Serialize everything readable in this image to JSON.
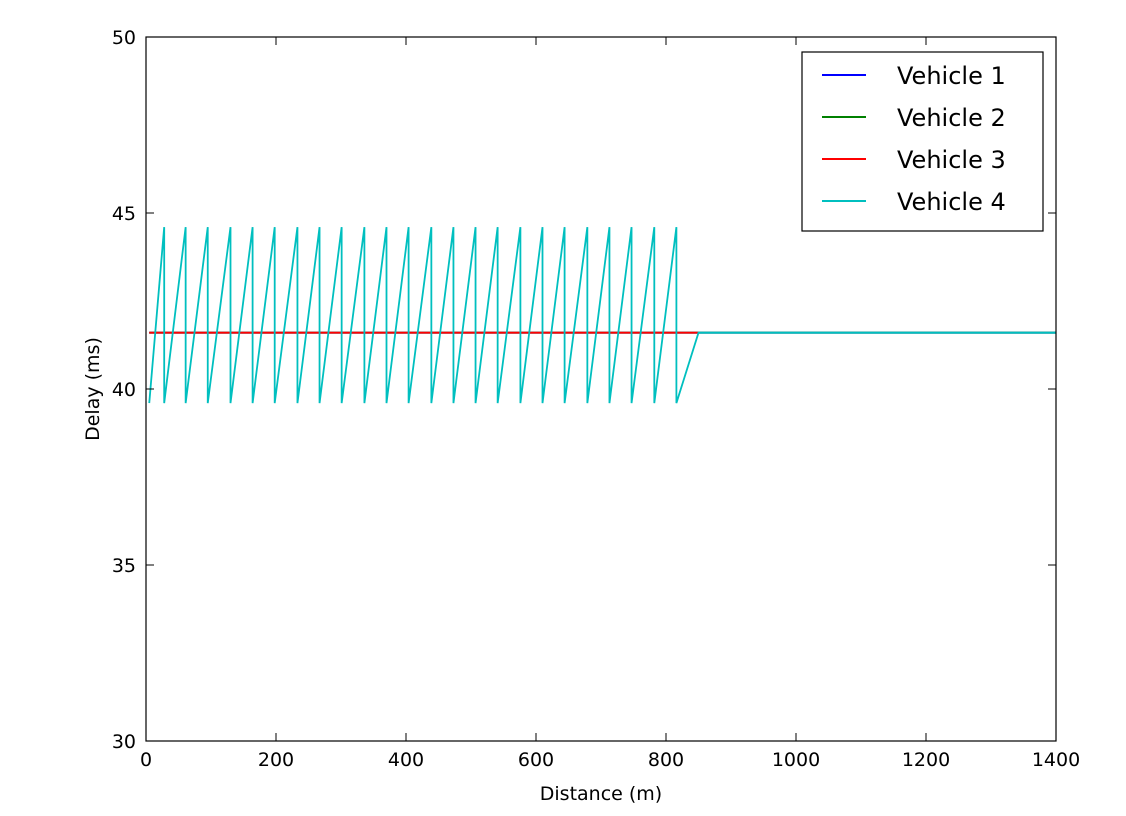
{
  "chart_data": {
    "type": "line",
    "title": "",
    "xlabel": "Distance (m)",
    "ylabel": "Delay (ms)",
    "xlim": [
      0,
      1400
    ],
    "ylim": [
      30,
      50
    ],
    "xticks": [
      0,
      200,
      400,
      600,
      800,
      1000,
      1200,
      1400
    ],
    "yticks": [
      30,
      35,
      40,
      45,
      50
    ],
    "grid": false,
    "legend_position": "top-right",
    "series": [
      {
        "name": "Vehicle 1",
        "color": "#0000ff",
        "x": [
          5,
          850,
          1400
        ],
        "y": [
          41.6,
          41.6,
          41.6
        ]
      },
      {
        "name": "Vehicle 2",
        "color": "#008000",
        "x": [
          5,
          850,
          1400
        ],
        "y": [
          41.6,
          41.6,
          41.6
        ]
      },
      {
        "name": "Vehicle 3",
        "color": "#ff0000",
        "x": [
          5,
          850
        ],
        "y": [
          41.6,
          41.6
        ]
      },
      {
        "name": "Vehicle 4",
        "color": "#00bfbf",
        "x": [
          5,
          28,
          28,
          61,
          61,
          95,
          95,
          130,
          130,
          164,
          164,
          198,
          198,
          233,
          233,
          267,
          267,
          301,
          301,
          336,
          336,
          370,
          370,
          404,
          404,
          439,
          439,
          473,
          473,
          507,
          507,
          541,
          541,
          576,
          576,
          610,
          610,
          644,
          644,
          679,
          679,
          713,
          713,
          747,
          747,
          782,
          782,
          816,
          816,
          850,
          1400
        ],
        "y": [
          39.6,
          44.6,
          39.6,
          44.6,
          39.6,
          44.6,
          39.6,
          44.6,
          39.6,
          44.6,
          39.6,
          44.6,
          39.6,
          44.6,
          39.6,
          44.6,
          39.6,
          44.6,
          39.6,
          44.6,
          39.6,
          44.6,
          39.6,
          44.6,
          39.6,
          44.6,
          39.6,
          44.6,
          39.6,
          44.6,
          39.6,
          44.6,
          39.6,
          44.6,
          39.6,
          44.6,
          39.6,
          44.6,
          39.6,
          44.6,
          39.6,
          44.6,
          39.6,
          44.6,
          39.6,
          44.6,
          39.6,
          44.6,
          39.6,
          41.6,
          41.6
        ]
      }
    ]
  }
}
